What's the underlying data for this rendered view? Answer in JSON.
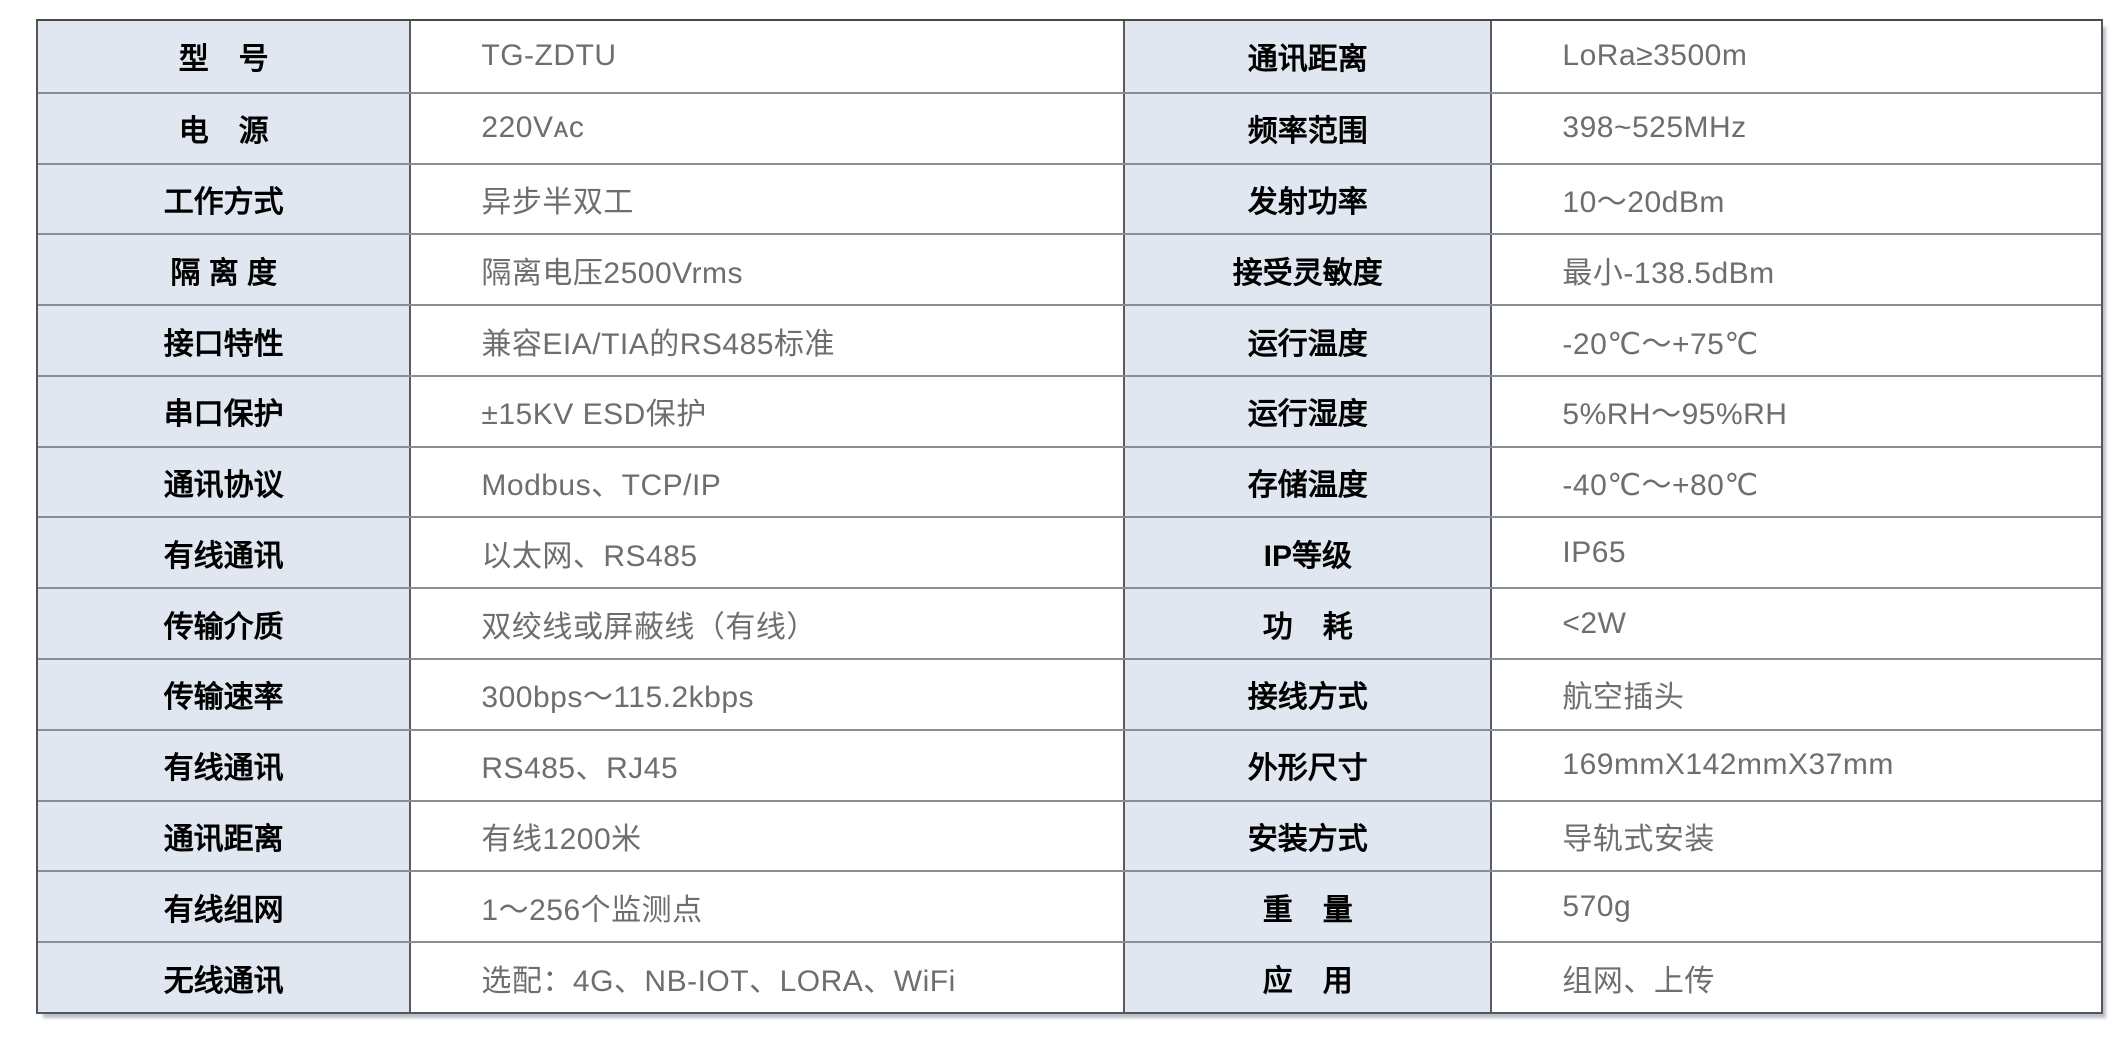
{
  "table": {
    "description": "产品技术参数表",
    "accent_colors": {
      "label_cell_bg": "#e1e7f0",
      "value_cell_bg": "#ffffff",
      "grid_line_vertical": "#585c61",
      "grid_line_horizontal": "#898e95",
      "label_text": "#000000",
      "value_text": "#6e6e6e"
    },
    "rows": [
      {
        "l1": "型　号",
        "v1": "TG-ZDTU",
        "l2": "通讯距离",
        "v2": "LoRa≥3500m"
      },
      {
        "l1": "电　源",
        "v1": "220Vᴀᴄ",
        "l2": "频率范围",
        "v2": "398~525MHz"
      },
      {
        "l1": "工作方式",
        "v1": "异步半双工",
        "l2": "发射功率",
        "v2": "10～20dBm"
      },
      {
        "l1": "隔 离 度",
        "v1": "隔离电压2500Vrms",
        "l2": "接受灵敏度",
        "v2": "最小-138.5dBm"
      },
      {
        "l1": "接口特性",
        "v1": "兼容EIA/TIA的RS485标准",
        "l2": "运行温度",
        "v2": "-20℃～+75℃"
      },
      {
        "l1": "串口保护",
        "v1": "±15KV ESD保护",
        "l2": "运行湿度",
        "v2": "5%RH～95%RH"
      },
      {
        "l1": "通讯协议",
        "v1": "Modbus、TCP/IP",
        "l2": "存储温度",
        "v2": "-40℃～+80℃"
      },
      {
        "l1": "有线通讯",
        "v1": "以太网、RS485",
        "l2": "IP等级",
        "v2": "IP65"
      },
      {
        "l1": "传输介质",
        "v1": "双绞线或屏蔽线（有线）",
        "l2": "功　耗",
        "v2": "<2W"
      },
      {
        "l1": "传输速率",
        "v1": "300bps～115.2kbps",
        "l2": "接线方式",
        "v2": "航空插头"
      },
      {
        "l1": "有线通讯",
        "v1": "RS485、RJ45",
        "l2": "外形尺寸",
        "v2": "169mmX142mmX37mm"
      },
      {
        "l1": "通讯距离",
        "v1": "有线1200米",
        "l2": "安装方式",
        "v2": "导轨式安装"
      },
      {
        "l1": "有线组网",
        "v1": "1～256个监测点",
        "l2": "重　量",
        "v2": "570g"
      },
      {
        "l1": "无线通讯",
        "v1": "选配：4G、NB-IOT、LORA、WiFi",
        "l2": "应　用",
        "v2": "组网、上传"
      }
    ]
  }
}
